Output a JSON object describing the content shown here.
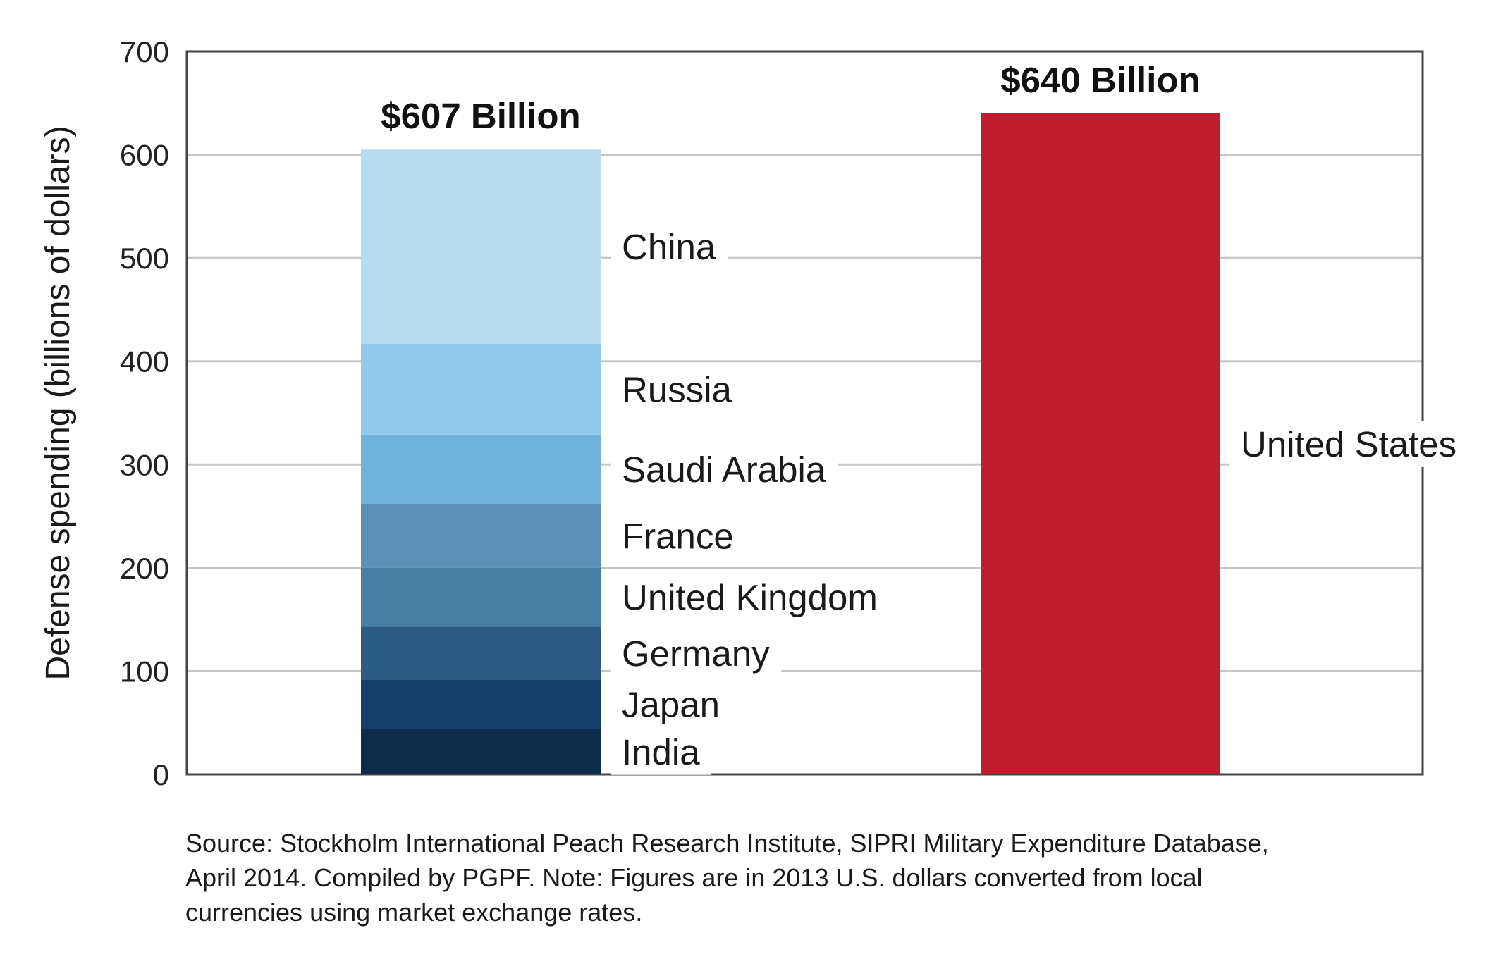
{
  "chart_data": {
    "type": "bar",
    "stacked": true,
    "ylabel": "Defense spending (billions of dollars)",
    "ylim": [
      0,
      700
    ],
    "yticks": [
      0,
      100,
      200,
      300,
      400,
      500,
      600,
      700
    ],
    "grid": true,
    "bars": [
      {
        "total_label": "$607 Billion",
        "segments": [
          {
            "name": "India",
            "value": 44,
            "color": "#0f2b4a"
          },
          {
            "name": "Japan",
            "value": 48,
            "color": "#143d6b"
          },
          {
            "name": "Germany",
            "value": 51,
            "color": "#2c5c86"
          },
          {
            "name": "United Kingdom",
            "value": 57,
            "color": "#477ea3"
          },
          {
            "name": "France",
            "value": 62,
            "color": "#5b90b8"
          },
          {
            "name": "Saudi Arabia",
            "value": 67,
            "color": "#6fb2dc"
          },
          {
            "name": "Russia",
            "value": 88,
            "color": "#8fcaec"
          },
          {
            "name": "China",
            "value": 188,
            "color": "#b8dbf0"
          }
        ]
      },
      {
        "total_label": "$640 Billion",
        "segments": [
          {
            "name": "United States",
            "value": 640,
            "color": "#be1e2d"
          }
        ]
      }
    ]
  },
  "source_note": [
    "Source: Stockholm International Peach Research Institute, SIPRI Military Expenditure Database,",
    "April 2014. Compiled by PGPF. Note: Figures are in 2013 U.S. dollars converted from local",
    "currencies using market exchange rates."
  ]
}
